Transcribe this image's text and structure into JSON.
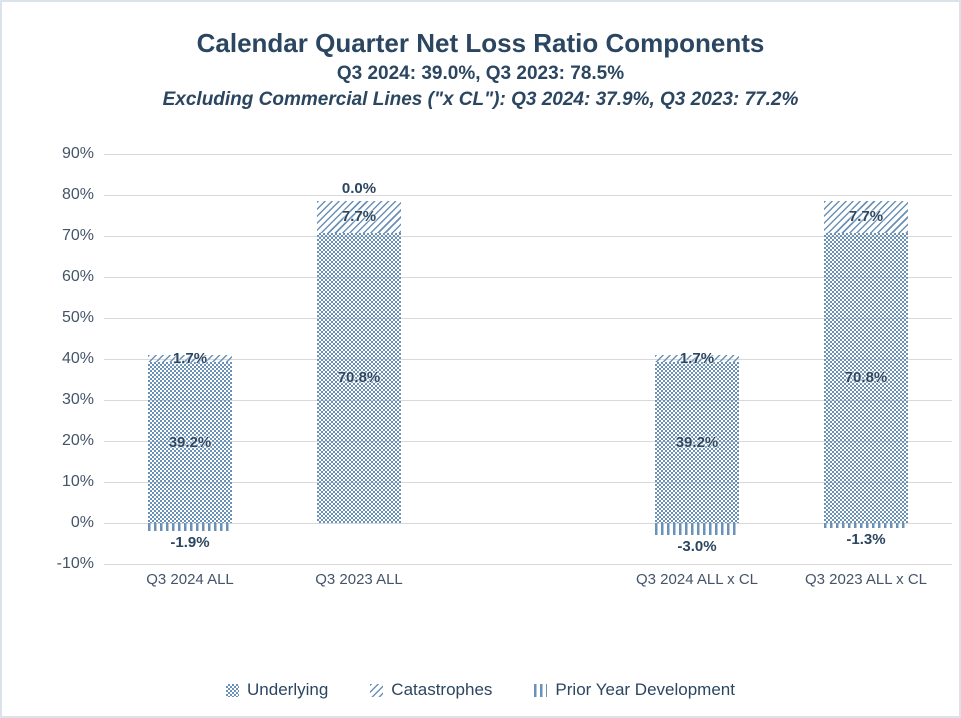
{
  "colors": {
    "title_text": "#2b4660",
    "axis_text": "#44546a",
    "pattern_blue": "#6a92b8",
    "gridline": "#d9d9d9",
    "frame_border": "#dbe2ec",
    "background": "#ffffff"
  },
  "chart_data": {
    "type": "bar",
    "stacked": true,
    "title": "Calendar Quarter Net Loss Ratio Components",
    "subtitle1": "Q3 2024: 39.0%, Q3 2023: 78.5%",
    "subtitle2": "Excluding Commercial Lines (\"x CL\"): Q3 2024: 37.9%, Q3 2023: 77.2%",
    "categories": [
      "Q3 2024 ALL",
      "Q3 2023 ALL",
      "",
      "Q3 2024 ALL x CL",
      "Q3 2023 ALL x CL"
    ],
    "series": [
      {
        "name": "Underlying",
        "pattern": "dots",
        "values": [
          39.2,
          70.8,
          null,
          39.2,
          70.8
        ],
        "labels": [
          "39.2%",
          "70.8%",
          null,
          "39.2%",
          "70.8%"
        ]
      },
      {
        "name": "Catastrophes",
        "pattern": "diagonal-hatch",
        "values": [
          1.7,
          7.7,
          null,
          1.7,
          7.7
        ],
        "labels": [
          "1.7%",
          "7.7%",
          null,
          "1.7%",
          "7.7%"
        ]
      },
      {
        "name": "Prior Year Development",
        "pattern": "vertical-dashes",
        "values": [
          -1.9,
          0.0,
          null,
          -3.0,
          -1.3
        ],
        "labels": [
          "-1.9%",
          "0.0%",
          null,
          "-3.0%",
          "-1.3%"
        ]
      }
    ],
    "ylim": [
      -10,
      90
    ],
    "ytick_step": 10,
    "ytick_labels": [
      "90%",
      "80%",
      "70%",
      "60%",
      "50%",
      "40%",
      "30%",
      "20%",
      "10%",
      "0%",
      "-10%"
    ],
    "grid": "horizontal",
    "legend_position": "bottom"
  }
}
